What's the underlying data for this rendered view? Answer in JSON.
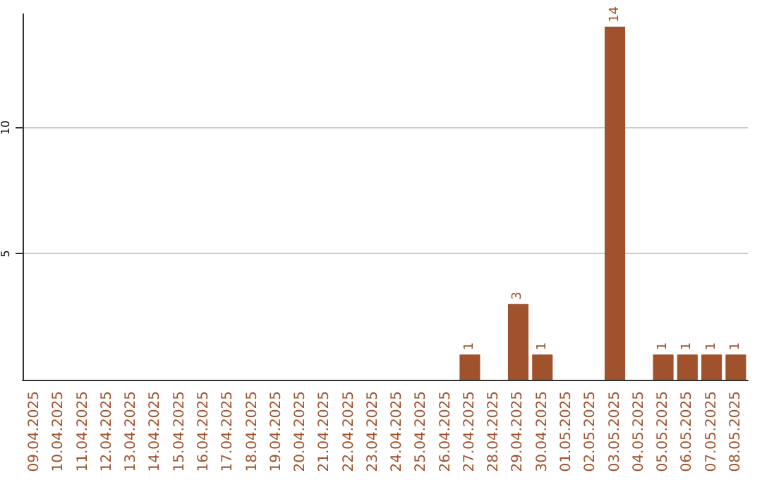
{
  "chart_data": {
    "type": "bar",
    "categories": [
      "09.04.2025",
      "10.04.2025",
      "11.04.2025",
      "12.04.2025",
      "13.04.2025",
      "14.04.2025",
      "15.04.2025",
      "16.04.2025",
      "17.04.2025",
      "18.04.2025",
      "19.04.2025",
      "20.04.2025",
      "21.04.2025",
      "22.04.2025",
      "23.04.2025",
      "24.04.2025",
      "25.04.2025",
      "26.04.2025",
      "27.04.2025",
      "28.04.2025",
      "29.04.2025",
      "30.04.2025",
      "01.05.2025",
      "02.05.2025",
      "03.05.2025",
      "04.05.2025",
      "05.05.2025",
      "06.05.2025",
      "07.05.2025",
      "08.05.2025"
    ],
    "values": [
      0,
      0,
      0,
      0,
      0,
      0,
      0,
      0,
      0,
      0,
      0,
      0,
      0,
      0,
      0,
      0,
      0,
      0,
      1,
      0,
      3,
      1,
      0,
      0,
      14,
      0,
      1,
      1,
      1,
      1
    ],
    "value_labels": [
      null,
      null,
      null,
      null,
      null,
      null,
      null,
      null,
      null,
      null,
      null,
      null,
      null,
      null,
      null,
      null,
      null,
      null,
      "1",
      null,
      "3",
      "1",
      null,
      null,
      "14",
      null,
      "1",
      "1",
      "1",
      "1"
    ],
    "color": "#a0522d",
    "ylim": [
      0,
      14.5
    ],
    "yticks": [
      5,
      10
    ],
    "grid": "y"
  }
}
